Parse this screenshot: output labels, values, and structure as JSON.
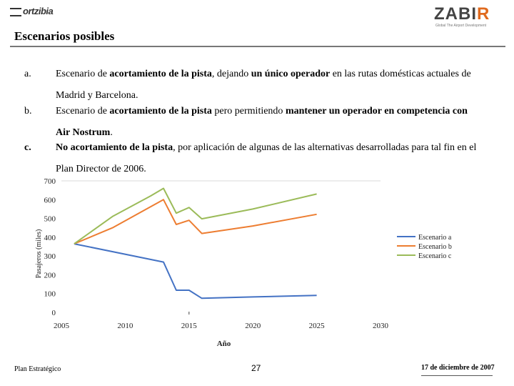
{
  "header": {
    "left_logo_text": "ortzibia",
    "right_logo_main": "ZABI",
    "right_logo_accent": "R",
    "right_logo_tagline": "Global  The  Airport  Development"
  },
  "title": "Escenarios posibles",
  "items": [
    {
      "marker": "a.",
      "lines": [
        [
          {
            "t": "Escenario de ",
            "b": false
          },
          {
            "t": "acortamiento de la pista",
            "b": true
          },
          {
            "t": ", dejando ",
            "b": false
          },
          {
            "t": "un único operador",
            "b": true
          },
          {
            "t": " en las rutas domésticas actuales de",
            "b": false
          }
        ],
        [
          {
            "t": "Madrid y Barcelona.",
            "b": false
          }
        ]
      ]
    },
    {
      "marker": "b.",
      "lines": [
        [
          {
            "t": "Escenario de ",
            "b": false
          },
          {
            "t": "acortamiento de la pista",
            "b": true
          },
          {
            "t": " pero permitiendo ",
            "b": false
          },
          {
            "t": "mantener un operador  en competencia con",
            "b": true
          }
        ],
        [
          {
            "t": "Air Nostrum",
            "b": true
          },
          {
            "t": ".",
            "b": false
          }
        ]
      ]
    },
    {
      "marker": "c.",
      "lines": [
        [
          {
            "t": "No acortamiento de la pista",
            "b": true
          },
          {
            "t": ", por aplicación de algunas de las alternativas desarrolladas para tal fin en el",
            "b": false
          }
        ],
        [
          {
            "t": "Plan Director de 2006.",
            "b": false
          }
        ]
      ]
    }
  ],
  "chart_data": {
    "type": "line",
    "xlabel": "Año",
    "ylabel": "Pasajeros (miles)",
    "xlim": [
      2005,
      2030
    ],
    "ylim": [
      0,
      700
    ],
    "xticks": [
      2005,
      2010,
      2015,
      2020,
      2025,
      2030
    ],
    "yticks": [
      0,
      100,
      200,
      300,
      400,
      500,
      600,
      700
    ],
    "legend_position": "right",
    "series": [
      {
        "name": "Escenario a",
        "color": "#4472c4",
        "x": [
          2006,
          2013,
          2014,
          2015,
          2016,
          2020,
          2025
        ],
        "y": [
          365,
          268,
          118,
          118,
          75,
          82,
          90
        ]
      },
      {
        "name": "Escenario b",
        "color": "#ed7d31",
        "x": [
          2006,
          2009,
          2013,
          2014,
          2015,
          2016,
          2020,
          2025
        ],
        "y": [
          365,
          450,
          600,
          468,
          490,
          420,
          460,
          522
        ]
      },
      {
        "name": "Escenario c",
        "color": "#9bbb59",
        "x": [
          2006,
          2009,
          2012,
          2013,
          2014,
          2015,
          2016,
          2020,
          2025
        ],
        "y": [
          365,
          510,
          620,
          660,
          528,
          558,
          498,
          550,
          630
        ]
      }
    ]
  },
  "footer": {
    "left": "Plan Estratégico",
    "page": "27",
    "date": "17 de diciembre de 2007"
  }
}
